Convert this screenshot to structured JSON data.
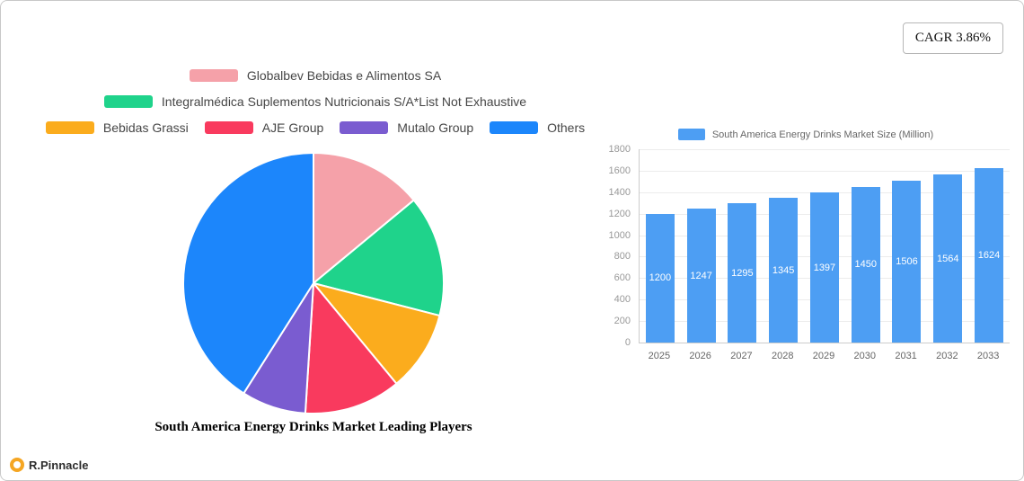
{
  "badge": {
    "label": "CAGR 3.86%"
  },
  "brand": {
    "name": "R.Pinnacle"
  },
  "chart_data": [
    {
      "type": "pie",
      "title": "South America Energy Drinks Market Leading Players",
      "legend_position": "top",
      "series": [
        {
          "label": "Globalbev Bebidas e Alimentos SA",
          "value": 14,
          "color": "#f5a1a9",
          "row": 0
        },
        {
          "label": "Integralmédica Suplementos Nutricionais S/A*List Not Exhaustive",
          "value": 15,
          "color": "#1fd38b",
          "row": 1
        },
        {
          "label": "Bebidas Grassi",
          "value": 10,
          "color": "#fbac1d",
          "row": 2
        },
        {
          "label": "AJE Group",
          "value": 12,
          "color": "#f93a5e",
          "row": 2
        },
        {
          "label": "Mutalo Group",
          "value": 8,
          "color": "#7a5cd0",
          "row": 2
        },
        {
          "label": "Others",
          "value": 41,
          "color": "#1c86fb",
          "row": 2
        }
      ]
    },
    {
      "type": "bar",
      "legend": "South America Energy Drinks Market Size (Million)",
      "categories": [
        "2025",
        "2026",
        "2027",
        "2028",
        "2029",
        "2030",
        "2031",
        "2032",
        "2033"
      ],
      "values": [
        1200,
        1247,
        1295,
        1345,
        1397,
        1450,
        1506,
        1564,
        1624
      ],
      "ylim": [
        0,
        1800
      ],
      "ytick_step": 200,
      "bar_color": "#4d9ef3",
      "grid": true,
      "legend_position": "top"
    }
  ]
}
